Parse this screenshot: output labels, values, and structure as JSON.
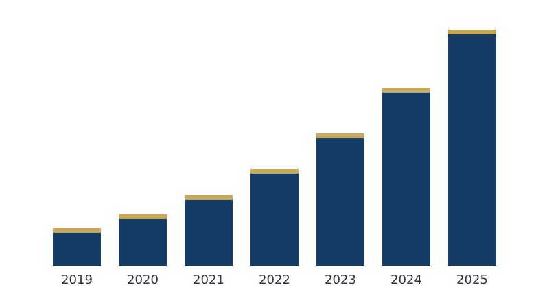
{
  "chart_data": {
    "type": "bar",
    "categories": [
      "2019",
      "2020",
      "2021",
      "2022",
      "2023",
      "2024",
      "2025"
    ],
    "values": [
      55,
      75,
      103,
      141,
      193,
      259,
      344
    ],
    "color": "#133d66",
    "cap_color": "#c9a85a",
    "ylim": [
      0,
      350
    ]
  }
}
